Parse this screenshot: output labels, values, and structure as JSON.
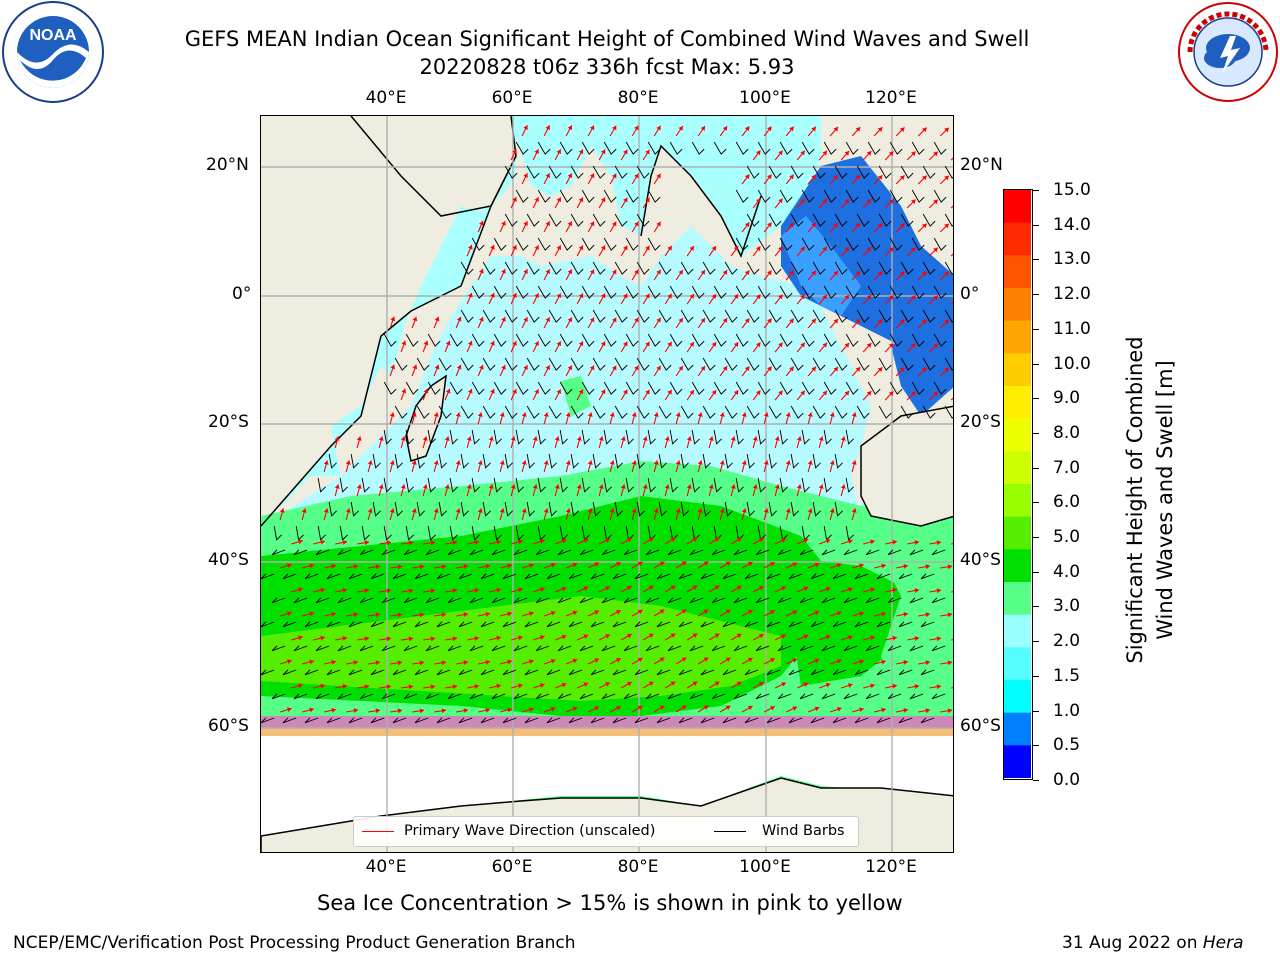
{
  "header": {
    "title_line1": "GEFS MEAN Indian Ocean Significant Height of Combined Wind Waves and Swell",
    "title_line2": "20220828 t06z 336h fcst   Max: 5.93"
  },
  "logos": {
    "left": {
      "name": "NOAA",
      "text": "NOAA"
    },
    "right": {
      "name": "NATIONAL WEATHER SERVICE"
    }
  },
  "map": {
    "lon_ticks": [
      "40°E",
      "60°E",
      "80°E",
      "100°E",
      "120°E"
    ],
    "lat_ticks": [
      "20°N",
      "0°",
      "20°S",
      "40°S",
      "60°S"
    ],
    "lon_range": [
      20,
      130
    ],
    "lat_range": [
      -72,
      28
    ]
  },
  "colorbar": {
    "title": "Significant Height of Combined\nWind Waves and Swell [m]",
    "ticks": [
      "15.0",
      "14.0",
      "13.0",
      "12.0",
      "11.0",
      "10.0",
      "9.0",
      "8.0",
      "7.0",
      "6.0",
      "5.0",
      "4.0",
      "3.0",
      "2.0",
      "1.5",
      "1.0",
      "0.5",
      "0.0"
    ],
    "colors": [
      "#ff0000",
      "#ff2a00",
      "#ff5500",
      "#ff8000",
      "#ffa500",
      "#ffcc00",
      "#ffee00",
      "#eeff00",
      "#ccff00",
      "#99ff00",
      "#55ee00",
      "#00e000",
      "#55ff88",
      "#99ffff",
      "#55ffff",
      "#00ffff",
      "#0080ff",
      "#0000ff"
    ]
  },
  "legend": {
    "wave_direction": "Primary Wave Direction (unscaled)",
    "wind_barbs": "Wind Barbs",
    "wave_color": "#ff0000",
    "barb_color": "#000000"
  },
  "footnote": "Sea Ice Concentration > 15% is shown in pink to yellow",
  "footer": {
    "left": "NCEP/EMC/Verification Post Processing Product Generation Branch",
    "right_prefix": "31 Aug 2022 on ",
    "right_host": "Hera"
  }
}
